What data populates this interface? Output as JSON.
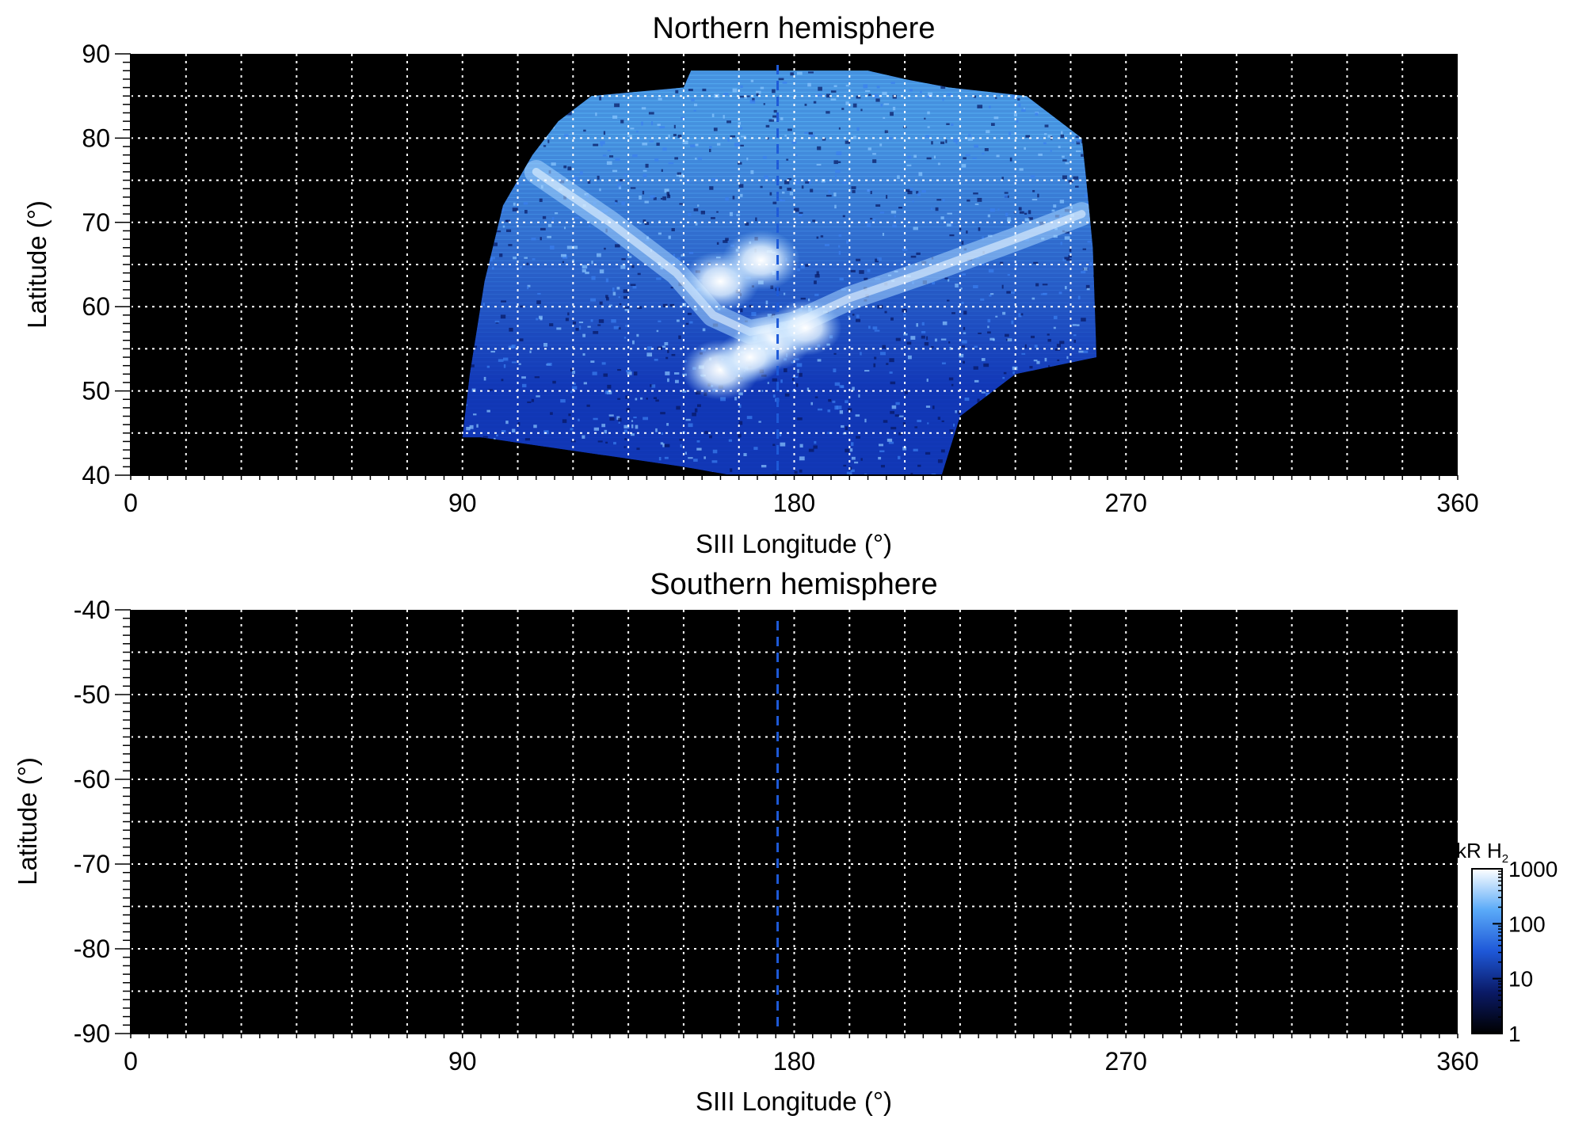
{
  "chart_data": [
    {
      "type": "heatmap",
      "title": "Northern hemisphere",
      "xlabel": "SIII Longitude (°)",
      "ylabel": "Latitude (°)",
      "xlim": [
        0,
        360
      ],
      "ylim": [
        40,
        90
      ],
      "x_ticks": [
        0,
        90,
        180,
        270,
        360
      ],
      "y_ticks": [
        40,
        50,
        60,
        70,
        80,
        90
      ],
      "x_grid_step": 15,
      "y_grid_step": 5,
      "grid": true,
      "reference_line_longitude": 175.5,
      "coverage_outline": [
        [
          90,
          44.5
        ],
        [
          92,
          52
        ],
        [
          96,
          63
        ],
        [
          101,
          72
        ],
        [
          109,
          78
        ],
        [
          116,
          82
        ],
        [
          125,
          85
        ],
        [
          150,
          86
        ],
        [
          152,
          88
        ],
        [
          200,
          88
        ],
        [
          210,
          87
        ],
        [
          222,
          86
        ],
        [
          243,
          85
        ],
        [
          258,
          80
        ],
        [
          259,
          76
        ],
        [
          261,
          67
        ],
        [
          262,
          54
        ],
        [
          240,
          52
        ],
        [
          225,
          47
        ],
        [
          220,
          40
        ],
        [
          163,
          40
        ],
        [
          150,
          41
        ],
        [
          95,
          44.5
        ]
      ],
      "bright_features": [
        {
          "lon": 160,
          "lat": 63,
          "value": 1000
        },
        {
          "lon": 171,
          "lat": 65.5,
          "value": 1000
        },
        {
          "lon": 174,
          "lat": 56,
          "value": 1000
        },
        {
          "lon": 160,
          "lat": 52.5,
          "value": 1000
        },
        {
          "lon": 168,
          "lat": 54,
          "value": 800
        },
        {
          "lon": 183,
          "lat": 57.5,
          "value": 900
        }
      ]
    },
    {
      "type": "heatmap",
      "title": "Southern hemisphere",
      "xlabel": "SIII Longitude (°)",
      "ylabel": "Latitude (°)",
      "xlim": [
        0,
        360
      ],
      "ylim": [
        -90,
        -40
      ],
      "x_ticks": [
        0,
        90,
        180,
        270,
        360
      ],
      "y_ticks": [
        -40,
        -50,
        -60,
        -70,
        -80,
        -90
      ],
      "x_grid_step": 15,
      "y_grid_step": 5,
      "grid": true,
      "reference_line_longitude": 175.5
    }
  ],
  "colorbar": {
    "label_main": "kR H",
    "label_sub": "2",
    "scale": "log",
    "range": [
      1,
      1000
    ],
    "ticks": [
      1,
      10,
      100,
      1000
    ],
    "colors": [
      "#000000",
      "#0a1a66",
      "#1e58d8",
      "#5aaaf8",
      "#ffffff"
    ]
  }
}
